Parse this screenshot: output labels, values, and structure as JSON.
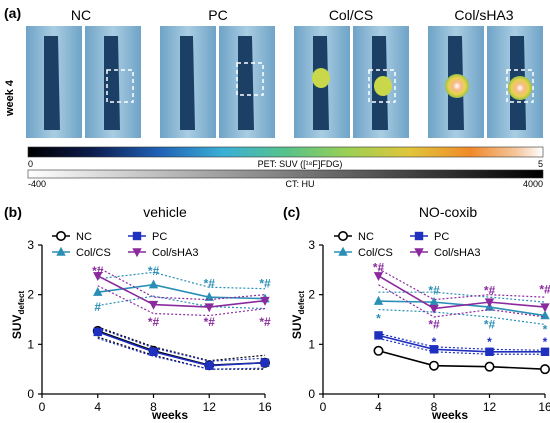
{
  "panel_a": {
    "label": "(a)",
    "row_label": "week 4",
    "groups": [
      "NC",
      "PC",
      "Col/CS",
      "Col/sHA3"
    ],
    "pet_bar": {
      "left": "0",
      "title": "PET: SUV ([¹⁸F]FDG)",
      "right": "5"
    },
    "ct_bar": {
      "left": "-400",
      "title": "CT: HU",
      "right": "4000"
    }
  },
  "colors": {
    "NC": "#000000",
    "PC": "#1f2fbf",
    "Col/CS": "#2a8fb5",
    "Col/sHA3": "#8a2a9e"
  },
  "chart_data": [
    {
      "type": "line",
      "panel_label": "(b)",
      "title": "vehicle",
      "ylabel_main": "SUV",
      "ylabel_sub": "defect",
      "xlabel": "weeks",
      "x": [
        4,
        8,
        12,
        16
      ],
      "xlim": [
        0,
        16
      ],
      "ylim": [
        0,
        3
      ],
      "xticks": [
        "0",
        "4",
        "8",
        "12",
        "16"
      ],
      "yticks": [
        "0",
        "1",
        "2",
        "3"
      ],
      "legend_placement": "top",
      "series": [
        {
          "name": "NC",
          "marker": "circle-open",
          "values": [
            1.27,
            0.87,
            0.58,
            0.63
          ],
          "ci_upper": [
            1.35,
            0.95,
            0.67,
            0.78
          ],
          "ci_lower": [
            1.15,
            0.78,
            0.5,
            0.5
          ]
        },
        {
          "name": "PC",
          "marker": "square",
          "values": [
            1.25,
            0.85,
            0.57,
            0.63
          ],
          "ci_upper": [
            1.33,
            0.93,
            0.66,
            0.72
          ],
          "ci_lower": [
            1.12,
            0.76,
            0.5,
            0.52
          ]
        },
        {
          "name": "Col/CS",
          "marker": "triangle-up",
          "values": [
            2.05,
            2.2,
            1.95,
            1.92
          ],
          "ci_upper": [
            2.32,
            2.45,
            2.15,
            2.12
          ],
          "ci_lower": [
            1.78,
            1.97,
            1.76,
            1.72
          ]
        },
        {
          "name": "Col/sHA3",
          "marker": "triangle-down",
          "values": [
            2.38,
            1.8,
            1.75,
            1.88
          ],
          "ci_upper": [
            2.55,
            1.95,
            1.9,
            2.0
          ],
          "ci_lower": [
            2.18,
            1.62,
            1.58,
            1.72
          ]
        }
      ],
      "annotations": [
        {
          "text": "*#",
          "x": 4,
          "y": 2.48,
          "series": "Col/sHA3"
        },
        {
          "text": "#",
          "x": 4,
          "y": 1.75,
          "series": "Col/CS"
        },
        {
          "text": "*#",
          "x": 8,
          "y": 2.48,
          "series": "Col/CS"
        },
        {
          "text": "*#",
          "x": 8,
          "y": 1.45,
          "series": "Col/sHA3"
        },
        {
          "text": "*#",
          "x": 12,
          "y": 2.22,
          "series": "Col/CS"
        },
        {
          "text": "*#",
          "x": 12,
          "y": 1.45,
          "series": "Col/sHA3"
        },
        {
          "text": "*#",
          "x": 16,
          "y": 2.22,
          "series": "Col/CS"
        },
        {
          "text": "*#",
          "x": 16,
          "y": 1.45,
          "series": "Col/sHA3"
        }
      ]
    },
    {
      "type": "line",
      "panel_label": "(c)",
      "title": "NO-coxib",
      "ylabel_main": "SUV",
      "ylabel_sub": "defect",
      "xlabel": "weeks",
      "x": [
        4,
        8,
        12,
        16
      ],
      "xlim": [
        0,
        16
      ],
      "ylim": [
        0,
        3
      ],
      "xticks": [
        "0",
        "4",
        "8",
        "12",
        "16"
      ],
      "yticks": [
        "0",
        "1",
        "2",
        "3"
      ],
      "legend_placement": "top",
      "series": [
        {
          "name": "NC",
          "marker": "circle-open",
          "values": [
            0.87,
            0.57,
            0.55,
            0.5
          ]
        },
        {
          "name": "PC",
          "marker": "square",
          "values": [
            1.18,
            0.9,
            0.85,
            0.85
          ],
          "ci_upper": [
            1.22,
            0.95,
            0.9,
            0.88
          ],
          "ci_lower": [
            1.12,
            0.85,
            0.8,
            0.8
          ]
        },
        {
          "name": "Col/CS",
          "marker": "triangle-up",
          "values": [
            1.87,
            1.85,
            1.75,
            1.58
          ],
          "ci_upper": [
            2.05,
            2.05,
            1.95,
            1.85
          ],
          "ci_lower": [
            1.7,
            1.65,
            1.55,
            1.4
          ]
        },
        {
          "name": "Col/sHA3",
          "marker": "triangle-down",
          "values": [
            2.38,
            1.72,
            1.85,
            1.75
          ],
          "ci_upper": [
            2.52,
            1.9,
            2.0,
            1.95
          ],
          "ci_lower": [
            2.2,
            1.55,
            1.7,
            1.55
          ]
        }
      ],
      "annotations": [
        {
          "text": "*#",
          "x": 4,
          "y": 2.55,
          "series": "Col/sHA3"
        },
        {
          "text": "*",
          "x": 4,
          "y": 1.52,
          "series": "Col/CS"
        },
        {
          "text": "*#",
          "x": 8,
          "y": 2.08,
          "series": "Col/CS"
        },
        {
          "text": "*#",
          "x": 8,
          "y": 1.4,
          "series": "Col/sHA3"
        },
        {
          "text": "*",
          "x": 8,
          "y": 1.05,
          "series": "PC"
        },
        {
          "text": "*#",
          "x": 12,
          "y": 2.08,
          "series": "Col/sHA3"
        },
        {
          "text": "*#",
          "x": 12,
          "y": 1.4,
          "series": "Col/CS"
        },
        {
          "text": "*",
          "x": 12,
          "y": 1.05,
          "series": "PC"
        },
        {
          "text": "*#",
          "x": 16,
          "y": 2.1,
          "series": "Col/sHA3"
        },
        {
          "text": "*",
          "x": 16,
          "y": 1.3,
          "series": "Col/CS"
        },
        {
          "text": "*",
          "x": 16,
          "y": 1.05,
          "series": "PC"
        }
      ]
    }
  ]
}
